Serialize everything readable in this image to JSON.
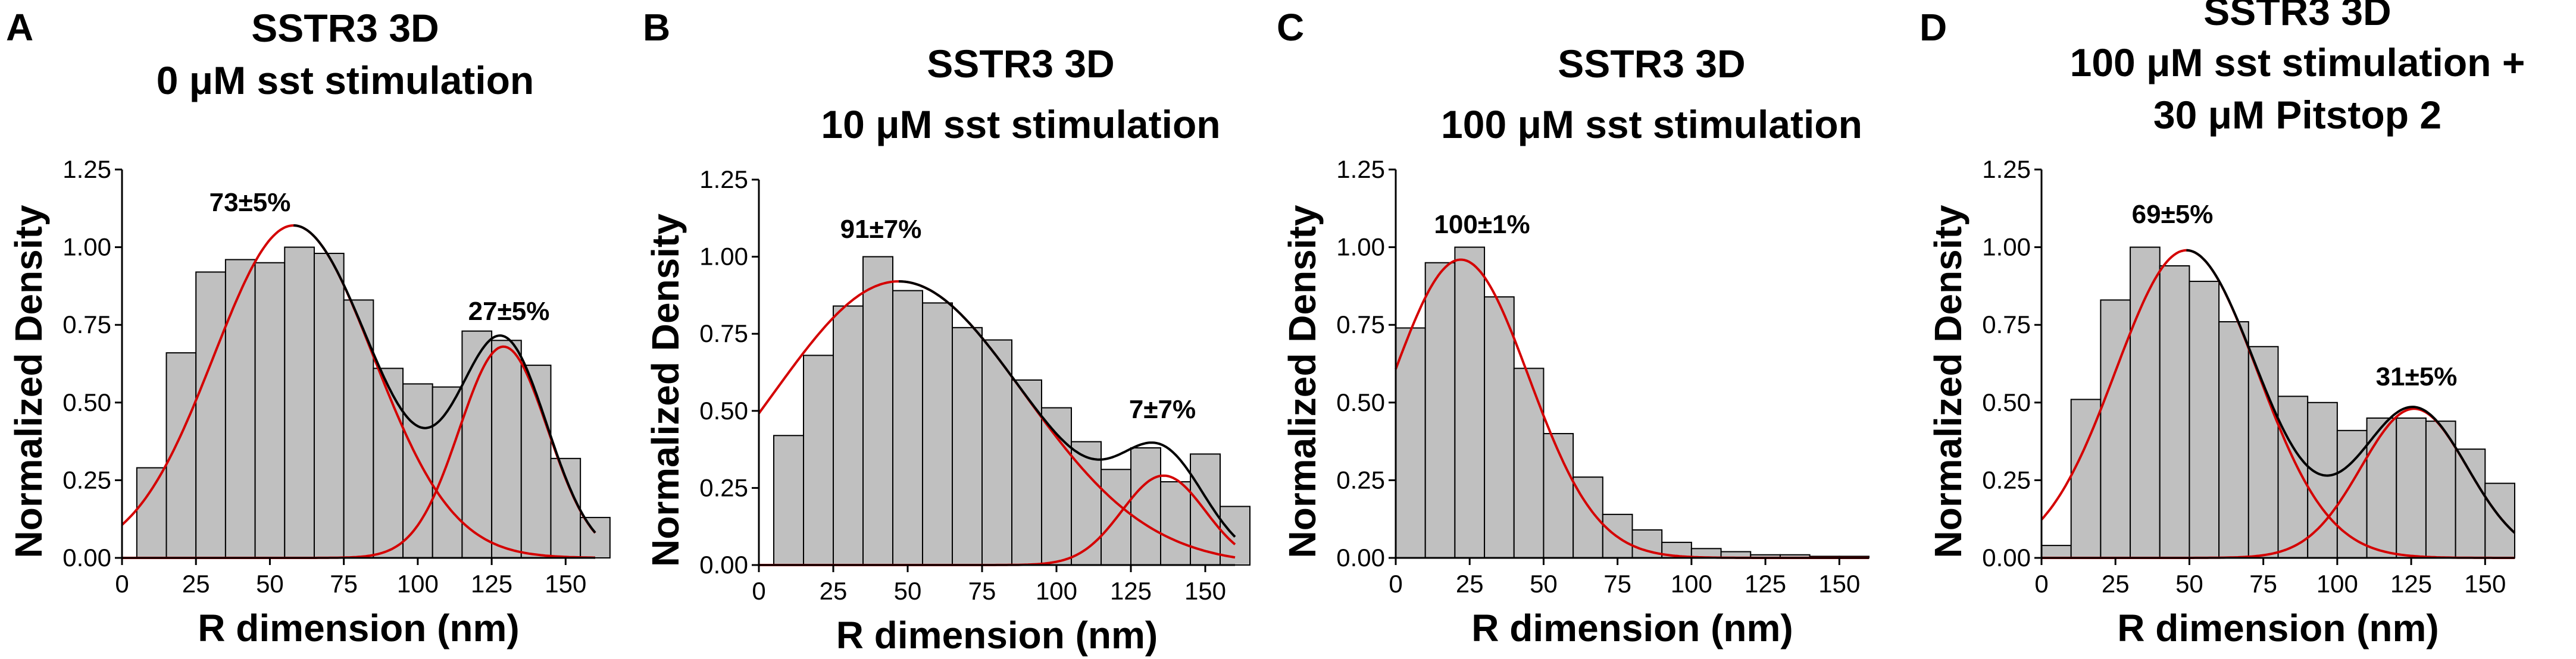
{
  "chart_data": [
    {
      "type": "bar",
      "panel_label": "A",
      "title_lines": [
        "SSTR3 3D",
        "0 μM sst stimulation"
      ],
      "xlabel": "R dimension (nm)",
      "ylabel": "Normalized Density",
      "xlim": [
        0,
        160
      ],
      "ylim": [
        0,
        1.25
      ],
      "xticks": [
        "0",
        "25",
        "50",
        "75",
        "100",
        "125",
        "150"
      ],
      "yticks": [
        "0.00",
        "0.25",
        "0.50",
        "0.75",
        "1.00",
        "1.25"
      ],
      "bin_width": 10,
      "bin_starts": [
        5,
        15,
        25,
        35,
        45,
        55,
        65,
        75,
        85,
        95,
        105,
        115,
        125,
        135,
        145,
        155
      ],
      "values": [
        0.29,
        0.66,
        0.92,
        0.96,
        0.95,
        1.0,
        0.98,
        0.83,
        0.61,
        0.56,
        0.55,
        0.73,
        0.7,
        0.62,
        0.32,
        0.13
      ],
      "fits": [
        {
          "name": "component 1",
          "color": "#d40000",
          "amp": 1.07,
          "mu": 58,
          "sigma": 27,
          "label": "73±5%"
        },
        {
          "name": "component 2",
          "color": "#d40000",
          "amp": 0.68,
          "mu": 129,
          "sigma": 15,
          "label": "27±5%"
        }
      ],
      "sum_fit": true
    },
    {
      "type": "bar",
      "panel_label": "B",
      "title_lines": [
        "SSTR3 3D",
        "10 μM sst stimulation"
      ],
      "xlabel": "R dimension (nm)",
      "ylabel": "Normalized Density",
      "xlim": [
        0,
        160
      ],
      "ylim": [
        0,
        1.25
      ],
      "xticks": [
        "0",
        "25",
        "50",
        "75",
        "100",
        "125",
        "150"
      ],
      "yticks": [
        "0.00",
        "0.25",
        "0.50",
        "0.75",
        "1.00",
        "1.25"
      ],
      "bin_width": 10,
      "bin_starts": [
        5,
        15,
        25,
        35,
        45,
        55,
        65,
        75,
        85,
        95,
        105,
        115,
        125,
        135,
        145,
        155
      ],
      "values": [
        0.42,
        0.68,
        0.84,
        1.0,
        0.89,
        0.85,
        0.77,
        0.73,
        0.6,
        0.51,
        0.4,
        0.31,
        0.38,
        0.27,
        0.36,
        0.19
      ],
      "fits": [
        {
          "name": "component 1",
          "color": "#d40000",
          "amp": 0.92,
          "mu": 47,
          "sigma": 42,
          "label": "91±7%"
        },
        {
          "name": "component 2",
          "color": "#d40000",
          "amp": 0.29,
          "mu": 136,
          "sigma": 14,
          "label": "7±7%"
        }
      ],
      "sum_fit": true
    },
    {
      "type": "bar",
      "panel_label": "C",
      "title_lines": [
        "SSTR3 3D",
        "100 μM sst stimulation"
      ],
      "xlabel": "R dimension (nm)",
      "ylabel": "Normalized Density",
      "xlim": [
        0,
        160
      ],
      "ylim": [
        0,
        1.25
      ],
      "xticks": [
        "0",
        "25",
        "50",
        "75",
        "100",
        "125",
        "150"
      ],
      "yticks": [
        "0.00",
        "0.25",
        "0.50",
        "0.75",
        "1.00",
        "1.25"
      ],
      "bin_width": 10,
      "bin_starts": [
        0,
        10,
        20,
        30,
        40,
        50,
        60,
        70,
        80,
        90,
        100,
        110,
        120,
        130,
        140,
        150
      ],
      "values": [
        0.74,
        0.95,
        1.0,
        0.84,
        0.61,
        0.4,
        0.26,
        0.14,
        0.09,
        0.05,
        0.03,
        0.02,
        0.01,
        0.01,
        0.005,
        0.005
      ],
      "fits": [
        {
          "name": "component 1",
          "color": "#d40000",
          "amp": 0.96,
          "mu": 22,
          "sigma": 23,
          "label": "100±1%"
        }
      ],
      "sum_fit": false
    },
    {
      "type": "bar",
      "panel_label": "D",
      "title_lines": [
        "SSTR3 3D",
        "100 μM sst stimulation +",
        "30 μM Pitstop 2"
      ],
      "xlabel": "R dimension (nm)",
      "ylabel": "Normalized Density",
      "xlim": [
        0,
        160
      ],
      "ylim": [
        0,
        1.25
      ],
      "xticks": [
        "0",
        "25",
        "50",
        "75",
        "100",
        "125",
        "150"
      ],
      "yticks": [
        "0.00",
        "0.25",
        "0.50",
        "0.75",
        "1.00",
        "1.25"
      ],
      "bin_width": 10,
      "bin_starts": [
        0,
        10,
        20,
        30,
        40,
        50,
        60,
        70,
        80,
        90,
        100,
        110,
        120,
        130,
        140,
        150
      ],
      "values": [
        0.04,
        0.51,
        0.83,
        1.0,
        0.94,
        0.89,
        0.76,
        0.68,
        0.52,
        0.5,
        0.41,
        0.45,
        0.45,
        0.44,
        0.35,
        0.24
      ],
      "fits": [
        {
          "name": "component 1",
          "color": "#d40000",
          "amp": 0.99,
          "mu": 49,
          "sigma": 24,
          "label": "69±5%"
        },
        {
          "name": "component 2",
          "color": "#d40000",
          "amp": 0.48,
          "mu": 126,
          "sigma": 18,
          "label": "31±5%"
        }
      ],
      "sum_fit": true
    }
  ]
}
